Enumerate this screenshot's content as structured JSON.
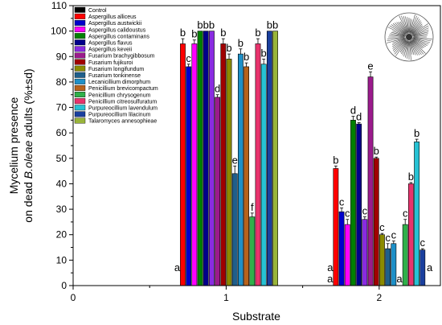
{
  "chart_data": {
    "type": "bar",
    "ylabel_line1": "Mycelium presence",
    "ylabel_line2_prefix": "on dead ",
    "ylabel_line2_italic": "B.oleae",
    "ylabel_line2_suffix": " adults (%±sd)",
    "xlabel": "Substrate",
    "xlim": [
      0,
      2.4
    ],
    "ylim": [
      0,
      110
    ],
    "xticks": [
      0,
      1,
      2
    ],
    "yticks": [
      0,
      10,
      20,
      30,
      40,
      50,
      60,
      70,
      80,
      90,
      100,
      110
    ],
    "legend_placement": "top-left",
    "grid": false,
    "control_labels": [
      {
        "x": 0.68,
        "text": "a"
      },
      {
        "x": 1.68,
        "text": "a"
      },
      {
        "x": 2.33,
        "text": "a"
      }
    ],
    "series": [
      {
        "name": "Control",
        "color": "#000000",
        "values": [
          null,
          0
        ],
        "err": [
          0,
          0
        ],
        "labels": [
          "",
          "a"
        ]
      },
      {
        "name": "Aspergillus alliceus",
        "color": "#ff0000",
        "values": [
          95,
          46
        ],
        "err": [
          2,
          1
        ],
        "labels": [
          "b",
          "b"
        ]
      },
      {
        "name": "Aspergillus austwickii",
        "color": "#0000cc",
        "values": [
          86,
          29
        ],
        "err": [
          1,
          1.5
        ],
        "labels": [
          "c",
          "c"
        ]
      },
      {
        "name": "Aspergillus calidoustus",
        "color": "#ff00ff",
        "values": [
          95,
          24
        ],
        "err": [
          1.5,
          2
        ],
        "labels": [
          "b",
          "c"
        ]
      },
      {
        "name": "Aspergillus contaminans",
        "color": "#008000",
        "values": [
          100,
          65
        ],
        "err": [
          0,
          1.5
        ],
        "labels": [
          "b",
          "d"
        ]
      },
      {
        "name": "Aspergillus flavus",
        "color": "#00008b",
        "values": [
          100,
          63.5
        ],
        "err": [
          0,
          0.5
        ],
        "labels": [
          "b",
          "d"
        ]
      },
      {
        "name": "Aspergillus keveii",
        "color": "#8a2be2",
        "values": [
          100,
          26
        ],
        "err": [
          0,
          1
        ],
        "labels": [
          "b",
          "c"
        ]
      },
      {
        "name": "Fusarium brachygibbosum",
        "color": "#9b1b8c",
        "values": [
          74,
          82
        ],
        "err": [
          1,
          2
        ],
        "labels": [
          "d",
          "e"
        ]
      },
      {
        "name": "Fusarium fujikuroi",
        "color": "#a00000",
        "values": [
          95,
          50
        ],
        "err": [
          2,
          0.5
        ],
        "labels": [
          "b",
          "b"
        ]
      },
      {
        "name": "Fusarium longifundum",
        "color": "#8b8b00",
        "values": [
          89,
          20
        ],
        "err": [
          2,
          0.5
        ],
        "labels": [
          "b",
          "c"
        ]
      },
      {
        "name": "Fusarium tonkinense",
        "color": "#1f5f8b",
        "values": [
          44,
          14.5
        ],
        "err": [
          3,
          2
        ],
        "labels": [
          "e",
          "c"
        ]
      },
      {
        "name": "Lecanicillium dimorphum",
        "color": "#1e90c8",
        "values": [
          91,
          16.5
        ],
        "err": [
          2,
          1
        ],
        "labels": [
          "b",
          "c"
        ]
      },
      {
        "name": "Penicillium brevicompactum",
        "color": "#b8621b",
        "values": [
          86,
          null
        ],
        "err": [
          1.5,
          0
        ],
        "labels": [
          "b",
          "a"
        ]
      },
      {
        "name": "Penicillium chrysogenum",
        "color": "#2fb04a",
        "values": [
          27,
          24
        ],
        "err": [
          1.5,
          2
        ],
        "labels": [
          "f",
          "c"
        ]
      },
      {
        "name": "Penicillium citreosulfuratum",
        "color": "#e8336d",
        "values": [
          95,
          40
        ],
        "err": [
          2,
          0.5
        ],
        "labels": [
          "b",
          "b"
        ]
      },
      {
        "name": "Purpureocillium lavendulum",
        "color": "#26c2d4",
        "values": [
          87,
          56.5
        ],
        "err": [
          2,
          1
        ],
        "labels": [
          "b",
          "b"
        ]
      },
      {
        "name": "Purpureocillium lilacinum",
        "color": "#1a3f9e",
        "values": [
          100,
          14
        ],
        "err": [
          0,
          0.5
        ],
        "labels": [
          "b",
          "c"
        ]
      },
      {
        "name": "Talaromyces annesophieae",
        "color": "#99b43a",
        "values": [
          100,
          null
        ],
        "err": [
          0,
          0
        ],
        "labels": [
          "b",
          ""
        ]
      }
    ]
  }
}
